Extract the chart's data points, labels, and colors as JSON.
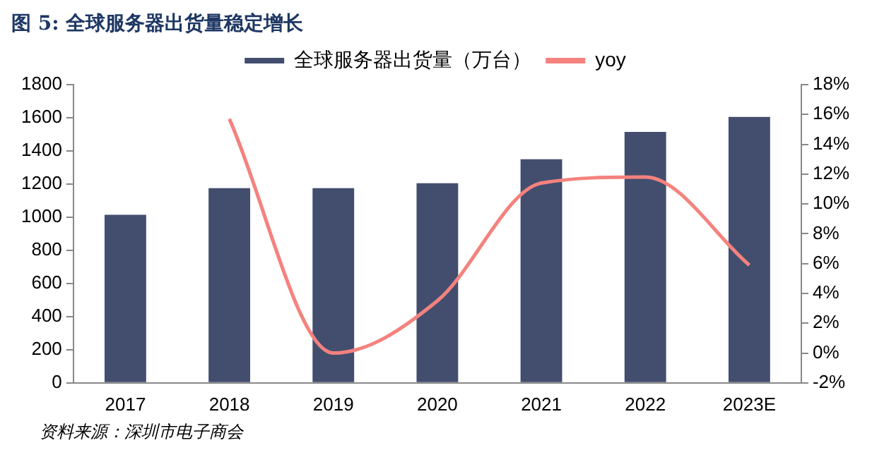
{
  "chart_data": {
    "type": "bar",
    "title": "图 5:  全球服务器出货量稳定增长",
    "annotations": [
      "资料来源：深圳市电子商会"
    ],
    "categories": [
      "2017",
      "2018",
      "2019",
      "2020",
      "2021",
      "2022",
      "2023E"
    ],
    "series": [
      {
        "name": "全球服务器出货量（万台）",
        "color": "#434e6e",
        "values": [
          1015,
          1175,
          1175,
          1205,
          1350,
          1515,
          1605
        ]
      },
      {
        "name": "yoy",
        "type": "line",
        "axis": "y2",
        "color": "#f4827e",
        "values": [
          null,
          15.7,
          0,
          3.5,
          11.4,
          11.8,
          5.9
        ]
      }
    ],
    "ylim": [
      0,
      1800
    ],
    "yticks": [
      0,
      200,
      400,
      600,
      800,
      1000,
      1200,
      1400,
      1600,
      1800
    ],
    "y2lim": [
      -2,
      18
    ],
    "y2ticks": [
      {
        "value": -2,
        "label": "-2%"
      },
      {
        "value": 0,
        "label": "0%"
      },
      {
        "value": 2,
        "label": "2%"
      },
      {
        "value": 4,
        "label": "4%"
      },
      {
        "value": 6,
        "label": "6%"
      },
      {
        "value": 8,
        "label": "8%"
      },
      {
        "value": 10,
        "label": "10%"
      },
      {
        "value": 12,
        "label": "12%"
      },
      {
        "value": 14,
        "label": "14%"
      },
      {
        "value": 16,
        "label": "16%"
      },
      {
        "value": 18,
        "label": "18%"
      }
    ],
    "grid": false,
    "legend": "top",
    "marker": "none"
  }
}
